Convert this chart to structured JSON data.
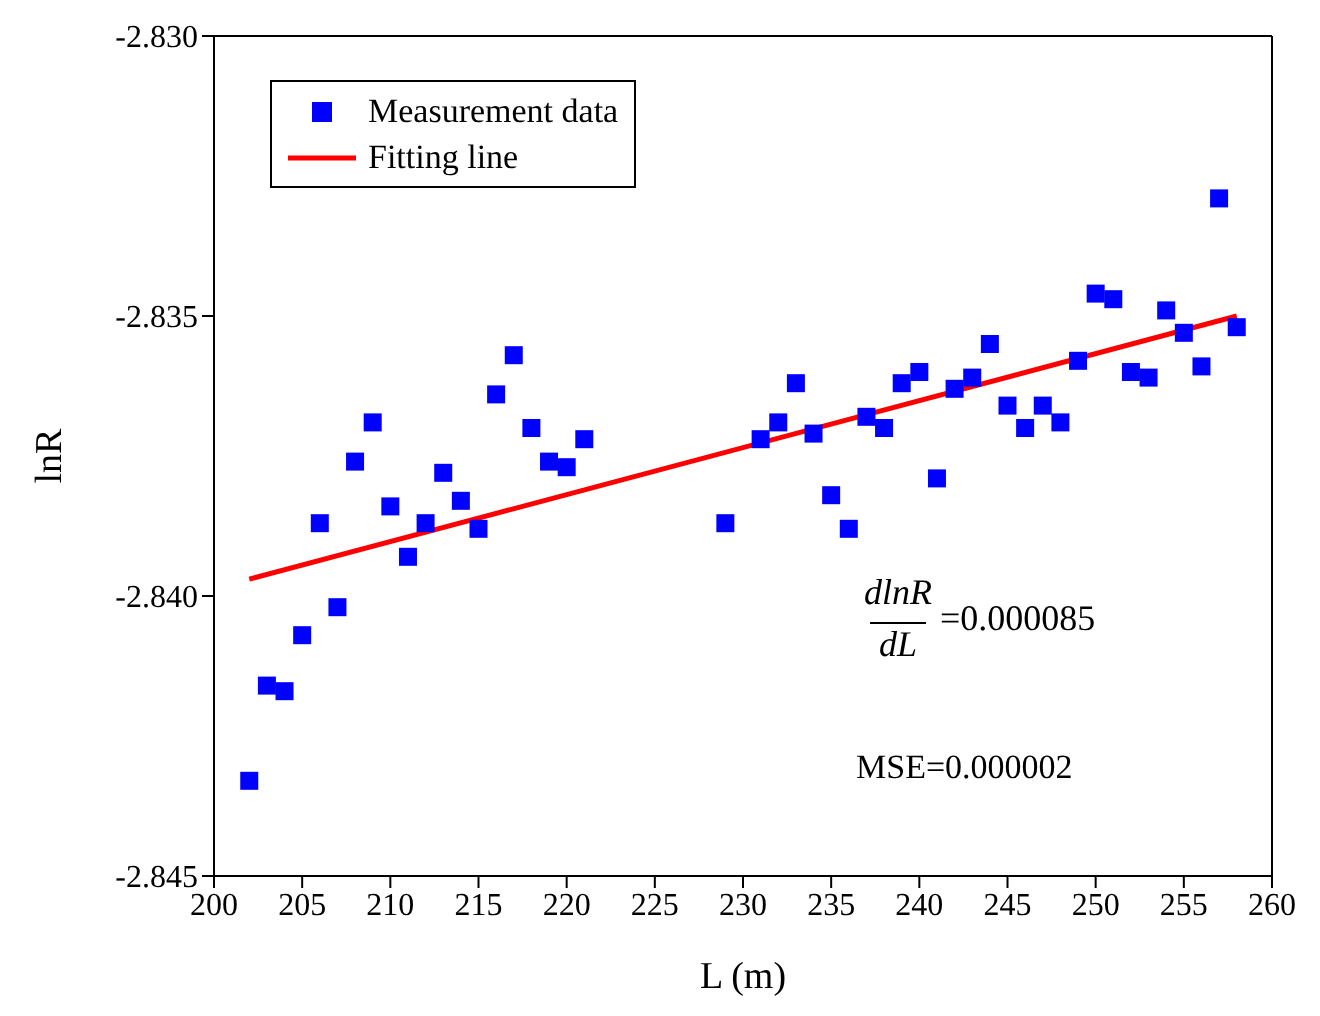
{
  "chart_data": {
    "type": "scatter",
    "xlabel": "L (m)",
    "ylabel": "lnR",
    "xlim": [
      200,
      260
    ],
    "xticks": [
      200,
      205,
      210,
      215,
      220,
      225,
      230,
      235,
      240,
      245,
      250,
      255,
      260
    ],
    "ylim": [
      -2.845,
      -2.83
    ],
    "yticks": [
      {
        "value": -2.845,
        "label": "-2.845"
      },
      {
        "value": -2.84,
        "label": "-2.840"
      },
      {
        "value": -2.835,
        "label": "-2.835"
      },
      {
        "value": -2.83,
        "label": "-2.830"
      }
    ],
    "legend": "top left",
    "series": [
      {
        "name": "Measurement data",
        "marker": "square",
        "color": "#0000ff",
        "x": [
          202,
          203,
          204,
          205,
          206,
          207,
          208,
          209,
          210,
          211,
          212,
          213,
          214,
          215,
          216,
          217,
          218,
          219,
          220,
          221,
          229,
          231,
          232,
          233,
          234,
          235,
          236,
          237,
          238,
          239,
          240,
          241,
          242,
          243,
          244,
          245,
          246,
          247,
          248,
          249,
          250,
          251,
          252,
          253,
          254,
          255,
          256,
          257,
          258
        ],
        "values": [
          -2.8433,
          -2.8416,
          -2.8417,
          -2.8407,
          -2.8387,
          -2.8402,
          -2.8376,
          -2.8369,
          -2.8384,
          -2.8393,
          -2.8387,
          -2.8378,
          -2.8383,
          -2.8388,
          -2.8364,
          -2.8357,
          -2.837,
          -2.8376,
          -2.8377,
          -2.8372,
          -2.8387,
          -2.8372,
          -2.8369,
          -2.8362,
          -2.8371,
          -2.8382,
          -2.8388,
          -2.8368,
          -2.837,
          -2.8362,
          -2.836,
          -2.8379,
          -2.8363,
          -2.8361,
          -2.8355,
          -2.8366,
          -2.837,
          -2.8366,
          -2.8369,
          -2.8358,
          -2.8346,
          -2.8347,
          -2.836,
          -2.8361,
          -2.8349,
          -2.8353,
          -2.8359,
          -2.8329,
          -2.8352
        ]
      },
      {
        "name": "Fitting line",
        "type": "line",
        "marker": "none",
        "color": "#ff0000",
        "x": [
          202,
          258
        ],
        "values": [
          -2.8397,
          -2.835
        ]
      }
    ],
    "annotations": [
      "dlnR",
      "dL",
      "=0.000085",
      "MSE=0.000002"
    ]
  }
}
